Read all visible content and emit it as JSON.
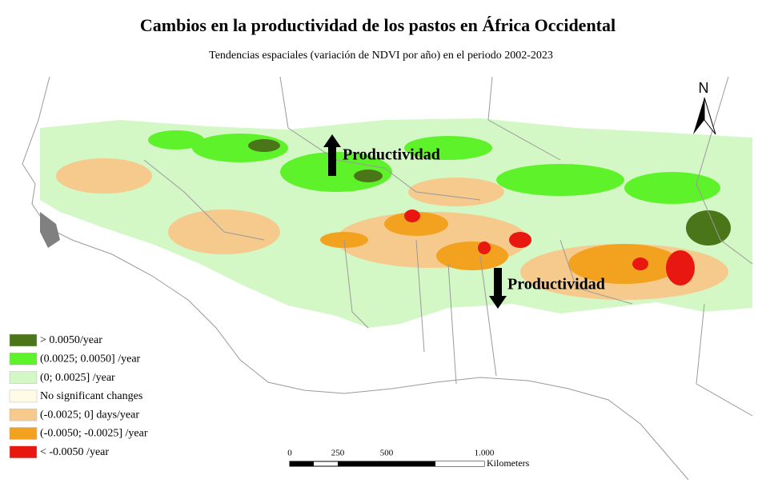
{
  "title": "Cambios en la productividad de los pastos en África Occidental",
  "subtitle": "Tendencias espaciales (variación de NDVI por año) en el periodo 2002-2023",
  "north": "N",
  "annotations": {
    "up": "Productividad",
    "down": "Productividad"
  },
  "legend": [
    {
      "label": "> 0.0050/year",
      "color": "#4a7518"
    },
    {
      "label": "(0.0025; 0.0050] /year",
      "color": "#5ef22a"
    },
    {
      "label": "(0; 0.0025] /year",
      "color": "#d3f8c6"
    },
    {
      "label": "No significant changes",
      "color": "#fffbe6"
    },
    {
      "label": "(-0.0025; 0] days/year",
      "color": "#f6c98c"
    },
    {
      "label": "(-0.0050; -0.0025] /year",
      "color": "#f2a21e"
    },
    {
      "label": "< -0.0050 /year",
      "color": "#e8170f"
    }
  ],
  "scale_bar": {
    "labels": [
      "0",
      "250",
      "500",
      "1.000"
    ],
    "unit": "Kilometers"
  }
}
